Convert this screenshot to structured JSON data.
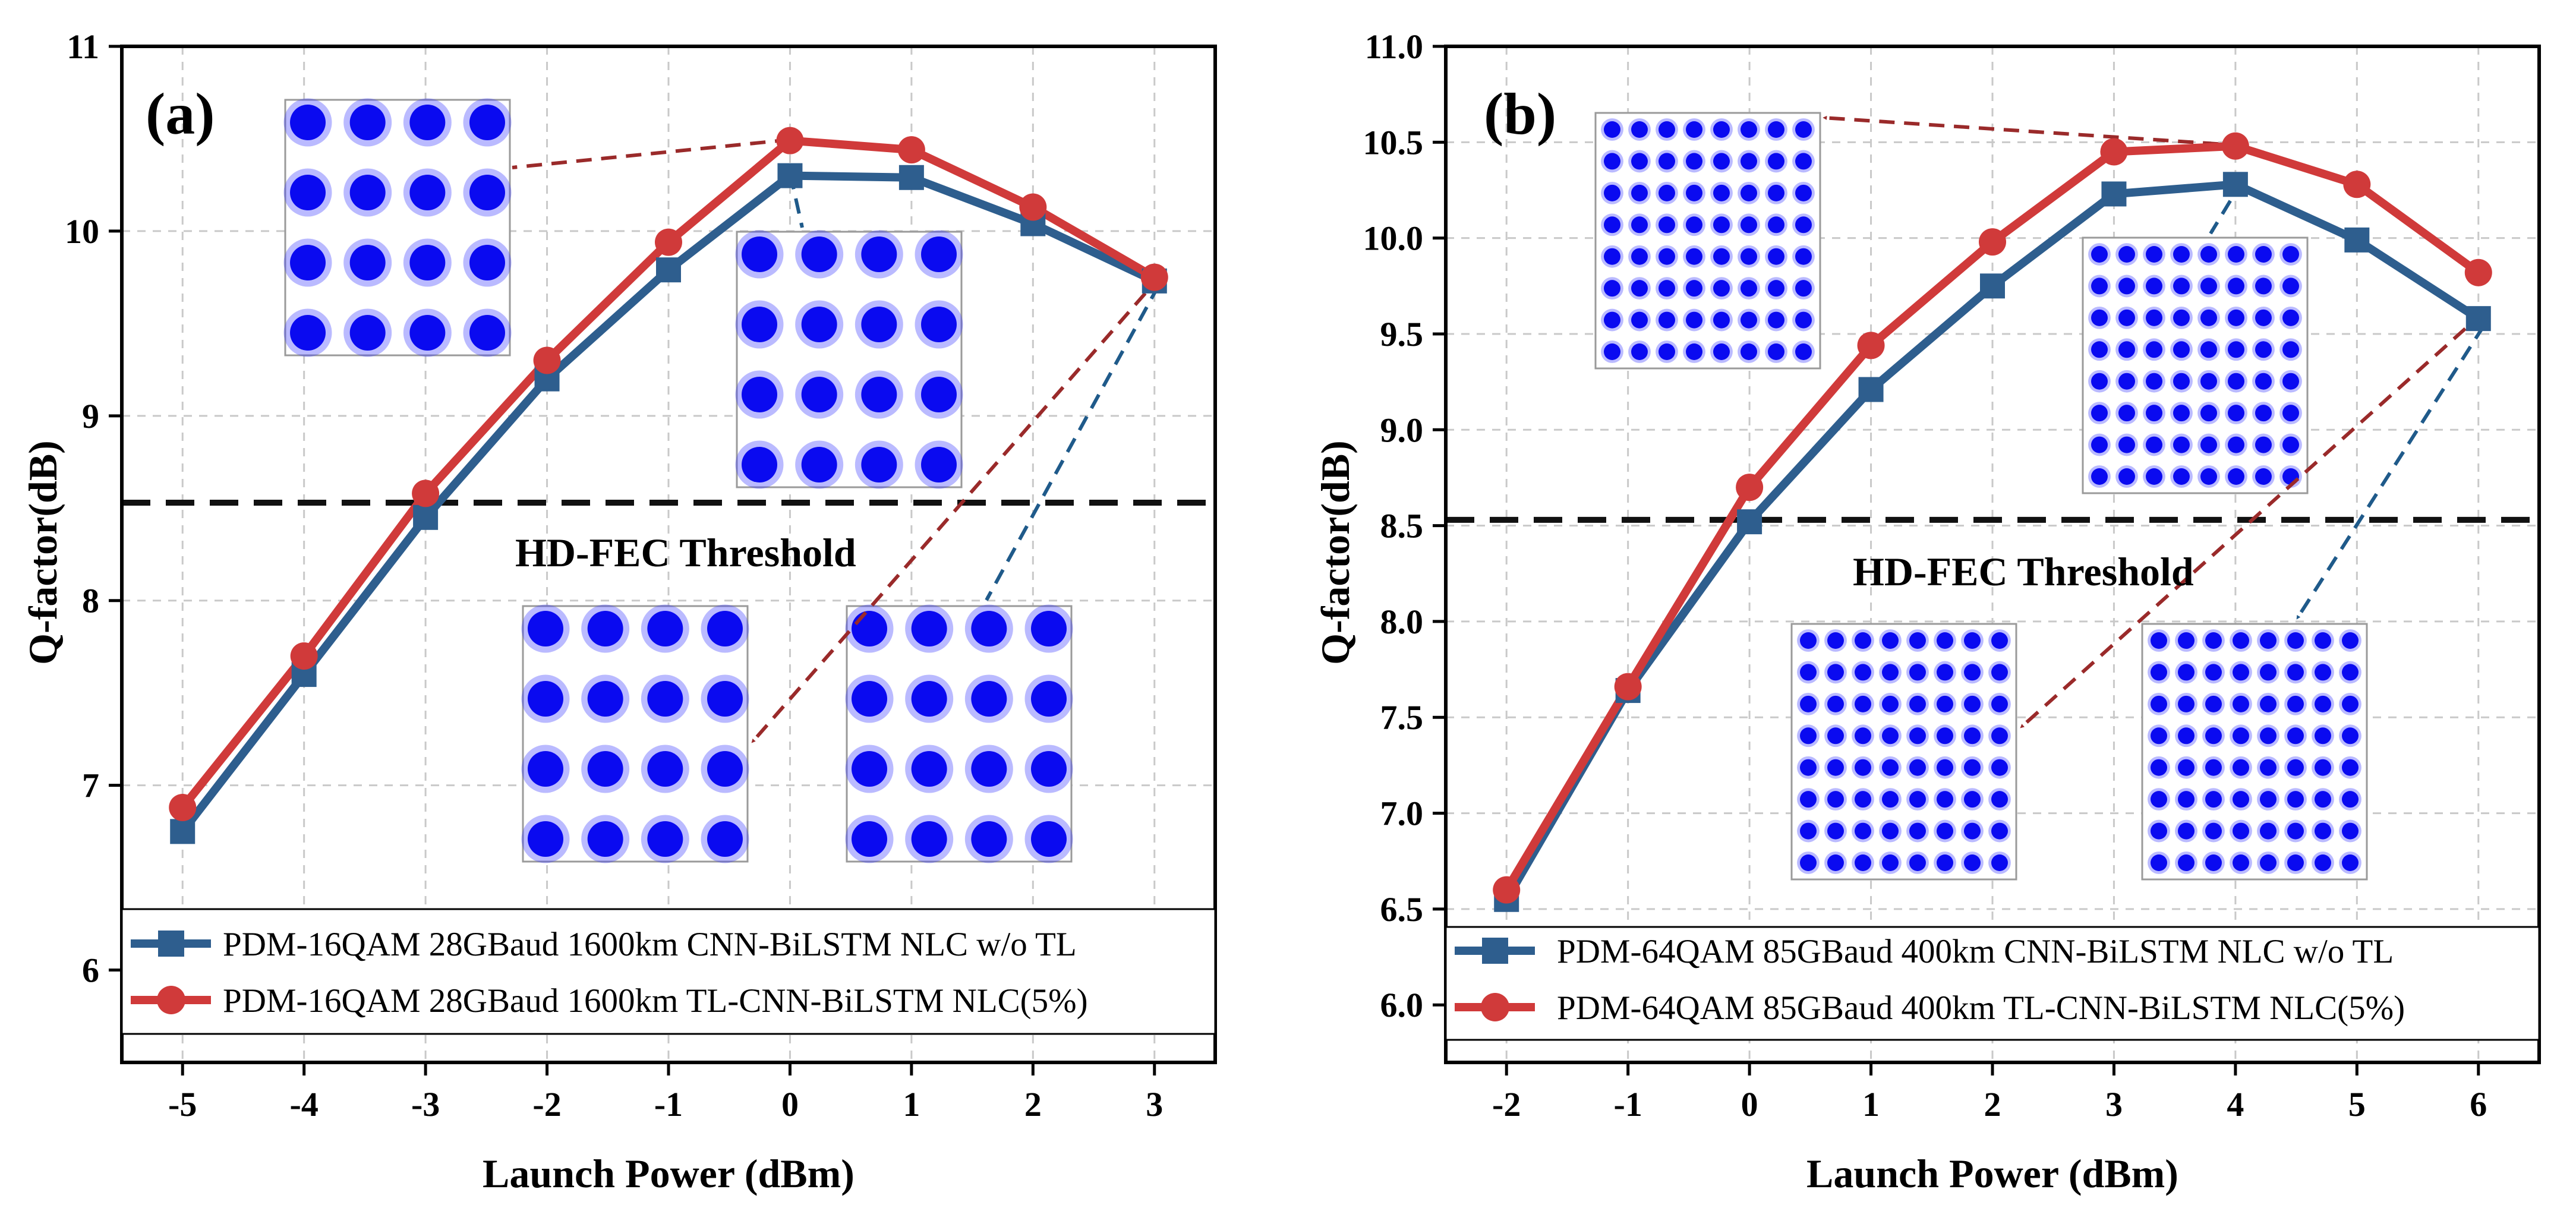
{
  "chart_data": [
    {
      "type": "line",
      "panel_label": "(a)",
      "xlabel": "Launch Power (dBm)",
      "ylabel": "Q-factor(dB)",
      "x": [
        -5,
        -4,
        -3,
        -2,
        -1,
        0,
        1,
        2,
        3
      ],
      "x_tick_labels": [
        "-5",
        "-4",
        "-3",
        "-2",
        "-1",
        "0",
        "1",
        "2",
        "3"
      ],
      "xlim": [
        -5.5,
        3.5
      ],
      "ylim": [
        5.5,
        11
      ],
      "y_ticks": [
        6,
        7,
        8,
        9,
        10,
        11
      ],
      "y_tick_labels": [
        "6",
        "7",
        "8",
        "9",
        "10",
        "11"
      ],
      "grid": true,
      "threshold": {
        "value": 8.53,
        "label": "HD-FEC Threshold"
      },
      "legend_position": "bottom",
      "series": [
        {
          "name": "PDM-16QAM 28GBaud 1600km CNN-BiLSTM NLC w/o TL",
          "marker": "square",
          "color": "#2e5e8e",
          "values": [
            6.75,
            7.6,
            8.45,
            9.2,
            9.79,
            10.3,
            10.29,
            10.04,
            9.73
          ]
        },
        {
          "name": "PDM-16QAM 28GBaud 1600km TL-CNN-BiLSTM NLC(5%)",
          "marker": "circle",
          "color": "#d03a3a",
          "values": [
            6.88,
            7.7,
            8.58,
            9.3,
            9.94,
            10.49,
            10.44,
            10.13,
            9.75
          ]
        }
      ],
      "constellation_insets": [
        {
          "name": "constellation-a-tl-peak",
          "grid_size": 4
        },
        {
          "name": "constellation-a-notl-peak",
          "grid_size": 4
        },
        {
          "name": "constellation-a-tl-high",
          "grid_size": 4
        },
        {
          "name": "constellation-a-notl-high",
          "grid_size": 4
        }
      ]
    },
    {
      "type": "line",
      "panel_label": "(b)",
      "xlabel": "Launch Power (dBm)",
      "ylabel": "Q-factor(dB)",
      "x": [
        -2,
        -1,
        0,
        1,
        2,
        3,
        4,
        5,
        6
      ],
      "x_tick_labels": [
        "-2",
        "-1",
        "0",
        "1",
        "2",
        "3",
        "4",
        "5",
        "6"
      ],
      "xlim": [
        -2.5,
        6.5
      ],
      "ylim": [
        5.7,
        11.0
      ],
      "y_ticks": [
        6.0,
        6.5,
        7.0,
        7.5,
        8.0,
        8.5,
        9.0,
        9.5,
        10.0,
        10.5,
        11.0
      ],
      "y_tick_labels": [
        "6.0",
        "6.5",
        "7.0",
        "7.5",
        "8.0",
        "8.5",
        "9.0",
        "9.5",
        "10.0",
        "10.5",
        "11.0"
      ],
      "grid": true,
      "threshold": {
        "value": 8.53,
        "label": "HD-FEC Threshold"
      },
      "legend_position": "bottom",
      "series": [
        {
          "name": "PDM-64QAM 85GBaud 400km CNN-BiLSTM NLC w/o TL",
          "marker": "square",
          "color": "#2e5e8e",
          "values": [
            6.55,
            7.64,
            8.52,
            9.21,
            9.75,
            10.23,
            10.28,
            9.99,
            9.58
          ]
        },
        {
          "name": "PDM-64QAM 85GBaud 400km TL-CNN-BiLSTM NLC(5%)",
          "marker": "circle",
          "color": "#d03a3a",
          "values": [
            6.6,
            7.66,
            8.7,
            9.44,
            9.98,
            10.45,
            10.48,
            10.28,
            9.82
          ]
        }
      ],
      "constellation_insets": [
        {
          "name": "constellation-b-tl-peak",
          "grid_size": 8
        },
        {
          "name": "constellation-b-notl-peak",
          "grid_size": 8
        },
        {
          "name": "constellation-b-tl-high",
          "grid_size": 8
        },
        {
          "name": "constellation-b-notl-high",
          "grid_size": 8
        }
      ]
    }
  ]
}
